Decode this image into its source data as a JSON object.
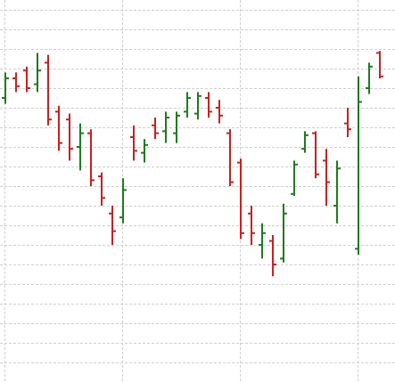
{
  "chart_data": {
    "type": "ohlc",
    "categories": [
      null,
      null,
      null,
      null,
      null,
      null,
      null,
      null,
      null,
      null,
      null,
      null,
      null,
      null,
      null,
      null,
      null,
      null,
      null,
      null,
      null,
      null,
      null,
      null,
      null,
      null,
      null,
      null,
      null,
      null,
      null,
      null,
      null,
      null,
      null,
      null
    ],
    "open": [
      14.5,
      15.5,
      15.9,
      15.2,
      16.3,
      13.8,
      13.4,
      12.0,
      12.7,
      10.5,
      8.6,
      8.4,
      12.5,
      11.7,
      13.1,
      12.8,
      12.7,
      13.8,
      13.7,
      14.5,
      14.0,
      12.7,
      11.2,
      8.6,
      7.0,
      7.2,
      6.3,
      9.6,
      11.9,
      12.7,
      11.3,
      9.0,
      13.2,
      6.8,
      15.0,
      16.8
    ],
    "high": [
      15.8,
      15.8,
      16.1,
      16.8,
      16.7,
      14.1,
      13.7,
      13.2,
      12.9,
      10.7,
      9.0,
      10.4,
      13.1,
      12.4,
      13.5,
      13.8,
      13.8,
      14.8,
      14.8,
      14.8,
      14.4,
      12.9,
      11.4,
      9.0,
      8.1,
      7.5,
      9.1,
      11.3,
      12.8,
      12.8,
      11.9,
      11.3,
      14.0,
      15.6,
      16.3,
      16.9
    ],
    "low": [
      14.2,
      14.8,
      14.8,
      14.8,
      13.1,
      11.8,
      11.3,
      10.8,
      10.0,
      9.0,
      7.0,
      8.1,
      11.3,
      11.2,
      12.4,
      12.2,
      12.2,
      13.5,
      13.4,
      13.5,
      13.2,
      10.0,
      7.3,
      7.0,
      6.3,
      5.4,
      6.1,
      9.5,
      11.7,
      10.4,
      9.0,
      8.1,
      12.5,
      6.5,
      14.7,
      15.5
    ],
    "close": [
      15.5,
      15.1,
      15.0,
      15.9,
      13.4,
      12.2,
      11.9,
      12.7,
      10.3,
      9.4,
      7.7,
      9.8,
      11.8,
      12.1,
      12.7,
      13.5,
      13.6,
      14.5,
      14.6,
      13.8,
      13.6,
      10.2,
      7.6,
      7.6,
      7.6,
      6.0,
      8.6,
      11.1,
      12.6,
      10.6,
      10.2,
      10.9,
      12.9,
      14.3,
      16.1,
      15.6
    ],
    "up_color": "#1f7a1f",
    "down_color": "#cc1f1f",
    "ylim": [
      0,
      19.5
    ],
    "yticks": [
      1,
      2,
      3,
      4,
      5,
      6,
      7,
      8,
      9,
      10,
      11,
      12,
      13,
      14,
      15,
      16,
      17,
      18,
      19
    ],
    "grid": true
  }
}
